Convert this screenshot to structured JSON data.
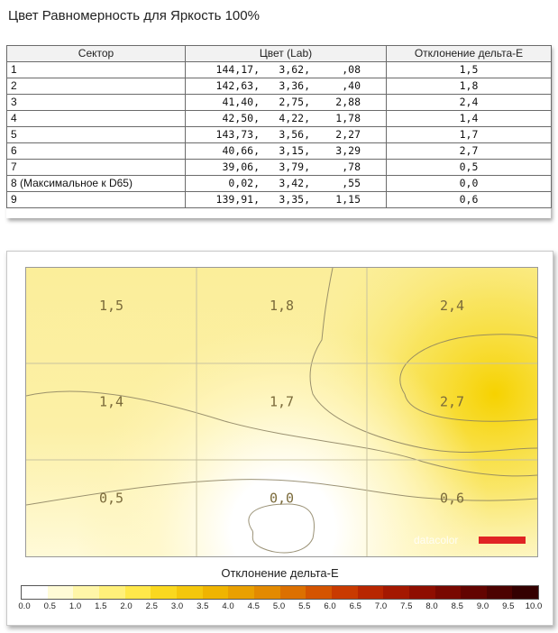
{
  "page_title": "Цвет Равномерность для Яркость 100%",
  "table": {
    "headers": [
      "Сектор",
      "Цвет (Lab)",
      "Отклонение дельта-E"
    ],
    "rows": [
      {
        "sector": "1",
        "L": "144,17,",
        "a": "3,62,",
        "b": ",08",
        "de": "1,5"
      },
      {
        "sector": "2",
        "L": "142,63,",
        "a": "3,36,",
        "b": ",40",
        "de": "1,8"
      },
      {
        "sector": "3",
        "L": "41,40,",
        "a": "2,75,",
        "b": "2,88",
        "de": "2,4"
      },
      {
        "sector": "4",
        "L": "42,50,",
        "a": "4,22,",
        "b": "1,78",
        "de": "1,4"
      },
      {
        "sector": "5",
        "L": "143,73,",
        "a": "3,56,",
        "b": "2,27",
        "de": "1,7"
      },
      {
        "sector": "6",
        "L": "40,66,",
        "a": "3,15,",
        "b": "3,29",
        "de": "2,7"
      },
      {
        "sector": "7",
        "L": "39,06,",
        "a": "3,79,",
        "b": ",78",
        "de": "0,5"
      },
      {
        "sector": "8 (Максимальное к D65)",
        "L": "0,02,",
        "a": "3,42,",
        "b": ",55",
        "de": "0,0"
      },
      {
        "sector": "9",
        "L": "139,91,",
        "a": "3,35,",
        "b": "1,15",
        "de": "0,6"
      }
    ]
  },
  "chart_data": {
    "type": "heatmap",
    "grid": [
      [
        "1,5",
        "1,8",
        "2,4"
      ],
      [
        "1,4",
        "1,7",
        "2,7"
      ],
      [
        "0,5",
        "0,0",
        "0,6"
      ]
    ],
    "values": [
      [
        1.5,
        1.8,
        2.4
      ],
      [
        1.4,
        1.7,
        2.7
      ],
      [
        0.5,
        0.0,
        0.6
      ]
    ],
    "scale_title": "Отклонение дельта-E",
    "scale_ticks": [
      "0.0",
      "0.5",
      "1.0",
      "1.5",
      "2.0",
      "2.5",
      "3.0",
      "3.5",
      "4.0",
      "4.5",
      "5.0",
      "5.5",
      "6.0",
      "6.5",
      "7.0",
      "7.5",
      "8.0",
      "8.5",
      "9.0",
      "9.5",
      "10.0"
    ],
    "scale_colors": [
      "#ffffff",
      "#fffbd6",
      "#fff6a8",
      "#fff07a",
      "#ffe84a",
      "#fad81f",
      "#f4c70c",
      "#efb400",
      "#e9a000",
      "#e38a00",
      "#dc7000",
      "#d45400",
      "#c93a00",
      "#b82600",
      "#a41800",
      "#8f0e00",
      "#790800",
      "#630400",
      "#4c0200",
      "#340000"
    ],
    "range": [
      0,
      10
    ],
    "watermark": "datacolor"
  }
}
